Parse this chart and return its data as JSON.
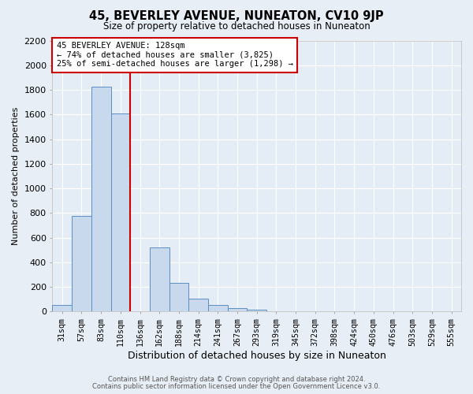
{
  "title": "45, BEVERLEY AVENUE, NUNEATON, CV10 9JP",
  "subtitle": "Size of property relative to detached houses in Nuneaton",
  "xlabel": "Distribution of detached houses by size in Nuneaton",
  "ylabel": "Number of detached properties",
  "bar_labels": [
    "31sqm",
    "57sqm",
    "83sqm",
    "110sqm",
    "136sqm",
    "162sqm",
    "188sqm",
    "214sqm",
    "241sqm",
    "267sqm",
    "293sqm",
    "319sqm",
    "345sqm",
    "372sqm",
    "398sqm",
    "424sqm",
    "450sqm",
    "476sqm",
    "503sqm",
    "529sqm",
    "555sqm"
  ],
  "bar_values": [
    50,
    775,
    1825,
    1610,
    0,
    520,
    230,
    105,
    55,
    30,
    15,
    0,
    0,
    0,
    0,
    0,
    0,
    0,
    0,
    0,
    0
  ],
  "bar_color": "#c9d9ed",
  "bar_edge_color": "#5b8ec4",
  "vline_color": "#cc0000",
  "annotation_title": "45 BEVERLEY AVENUE: 128sqm",
  "annotation_line1": "← 74% of detached houses are smaller (3,825)",
  "annotation_line2": "25% of semi-detached houses are larger (1,298) →",
  "annotation_box_color": "#cc0000",
  "ylim": [
    0,
    2200
  ],
  "yticks": [
    0,
    200,
    400,
    600,
    800,
    1000,
    1200,
    1400,
    1600,
    1800,
    2000,
    2200
  ],
  "footer1": "Contains HM Land Registry data © Crown copyright and database right 2024.",
  "footer2": "Contains public sector information licensed under the Open Government Licence v3.0.",
  "background_color": "#e8eef5",
  "plot_background": "#e4ecf5",
  "grid_color": "#ffffff"
}
